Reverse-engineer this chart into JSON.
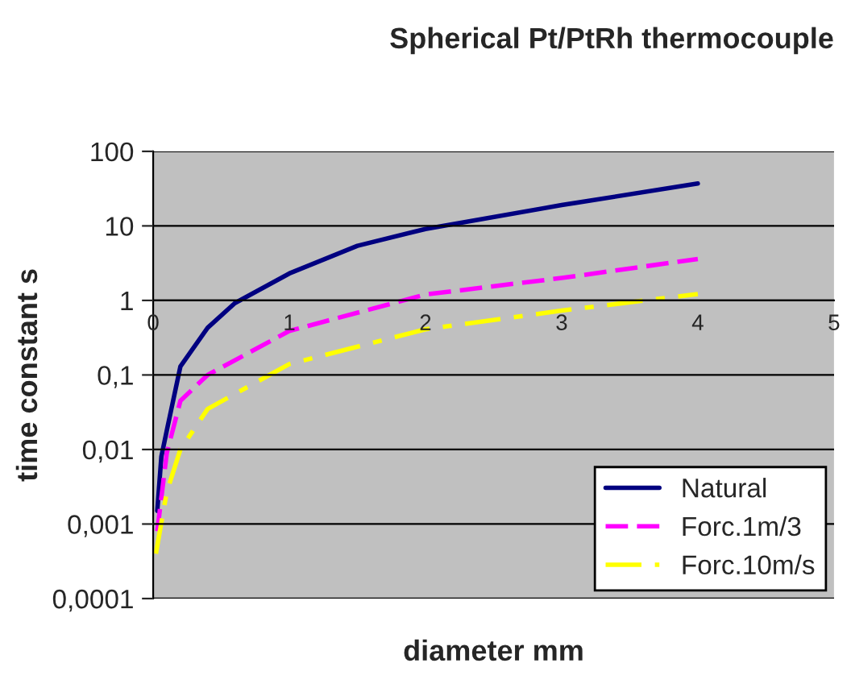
{
  "chart_data": {
    "type": "line",
    "title": "Spherical Pt/PtRh thermocouple",
    "xlabel": "diameter mm",
    "ylabel": "time constant s",
    "log": "y",
    "xlim": [
      0,
      5
    ],
    "xticks": [
      0,
      1,
      2,
      3,
      4,
      5
    ],
    "ylim": [
      0.0001,
      100
    ],
    "yticks": [
      {
        "value": 0.0001,
        "label": "0,0001"
      },
      {
        "value": 0.001,
        "label": "0,001"
      },
      {
        "value": 0.01,
        "label": "0,01"
      },
      {
        "value": 0.1,
        "label": "0,1"
      },
      1,
      10,
      100
    ],
    "grid": "y",
    "legend": "bottom right",
    "series": [
      {
        "name": "Natural",
        "color": "#000080",
        "line_style": "solid",
        "x": [
          0.03,
          0.06,
          0.1,
          0.2,
          0.4,
          0.6,
          1,
          1.5,
          2,
          3,
          4
        ],
        "values": [
          0.0015,
          0.008,
          0.018,
          0.13,
          0.43,
          0.92,
          2.3,
          5.4,
          9.1,
          19,
          37
        ]
      },
      {
        "name": "Forc.1m/3",
        "color": "#ff00ff",
        "line_style": "dashed",
        "x": [
          0.03,
          0.1,
          0.2,
          0.4,
          1,
          2,
          3,
          4
        ],
        "values": [
          0.0008,
          0.009,
          0.045,
          0.1,
          0.39,
          1.2,
          2.0,
          3.6
        ]
      },
      {
        "name": "Forc.10m/s",
        "color": "#ffff00",
        "line_style": "dashdot",
        "x": [
          0.02,
          0.1,
          0.2,
          0.4,
          1,
          2,
          3,
          4
        ],
        "values": [
          0.0004,
          0.0027,
          0.01,
          0.035,
          0.14,
          0.41,
          0.73,
          1.22
        ]
      }
    ]
  }
}
